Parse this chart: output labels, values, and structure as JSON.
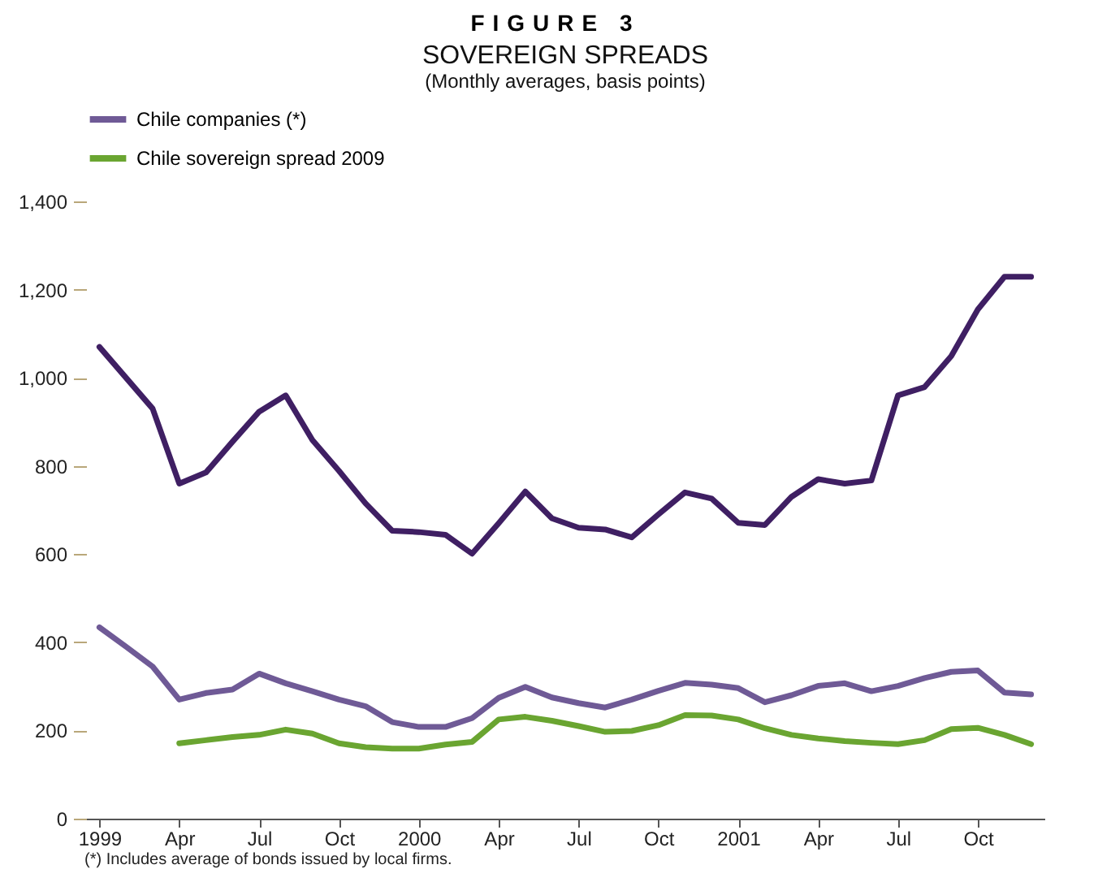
{
  "chart_data": {
    "type": "line",
    "title": "SOVEREIGN SPREADS",
    "subtitle": "(Monthly averages, basis points)",
    "annotations": [
      "FIGURE 3",
      "(*) Includes average of bonds issued by local firms."
    ],
    "categories": [
      "1999",
      null,
      null,
      "Apr",
      null,
      null,
      "Jul",
      null,
      null,
      "Oct",
      null,
      null,
      "2000",
      null,
      null,
      "Apr",
      null,
      null,
      "Jul",
      null,
      null,
      "Oct",
      null,
      null,
      "2001",
      null,
      null,
      "Apr",
      null,
      null,
      "Jul",
      null,
      null,
      "Oct",
      null,
      null
    ],
    "series": [
      {
        "color": "#3f1f63",
        "values": [
          1070,
          1000,
          930,
          760,
          785,
          855,
          923,
          960,
          859,
          789,
          715,
          653,
          650,
          644,
          601,
          670,
          742,
          681,
          660,
          656,
          638,
          690,
          740,
          726,
          671,
          666,
          730,
          770,
          760,
          767,
          960,
          979,
          1049,
          1155,
          1229,
          1229
        ]
      },
      {
        "name": "Chile companies (*)",
        "color": "#6f5a96",
        "values": [
          434,
          390,
          345,
          270,
          285,
          293,
          329,
          307,
          289,
          270,
          255,
          219,
          208,
          208,
          228,
          274,
          299,
          275,
          262,
          252,
          270,
          290,
          308,
          304,
          296,
          264,
          280,
          301,
          307,
          289,
          301,
          319,
          333,
          336,
          286,
          282
        ]
      },
      {
        "name": "Chile sovereign spread 2009",
        "color": "#6aa531",
        "values": [
          null,
          null,
          null,
          171,
          178,
          185,
          190,
          202,
          193,
          171,
          162,
          159,
          159,
          168,
          174,
          225,
          231,
          222,
          210,
          197,
          199,
          212,
          235,
          234,
          225,
          205,
          190,
          182,
          176,
          172,
          169,
          178,
          203,
          206,
          190,
          169
        ]
      }
    ],
    "ylim": [
      0,
      1400
    ],
    "yticks": [
      0,
      200,
      400,
      600,
      800,
      {
        "value": 1000,
        "label": "1,000"
      },
      {
        "value": 1200,
        "label": "1,200"
      },
      {
        "value": 1400,
        "label": "1,400"
      }
    ],
    "grid": false,
    "legend": "top",
    "line_style": "solid",
    "marker": "none"
  }
}
